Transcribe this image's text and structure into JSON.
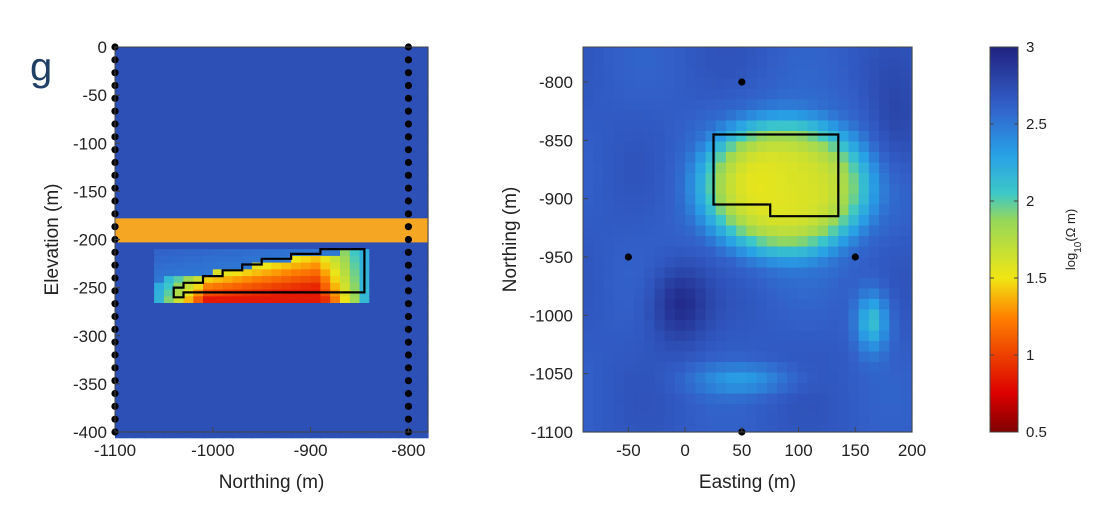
{
  "panel_label": "g",
  "chart_data": [
    {
      "type": "heatmap",
      "title": "",
      "xlabel": "Northing (m)",
      "ylabel": "Elevation (m)",
      "xlim": [
        -1100,
        -780
      ],
      "ylim": [
        -400,
        0
      ],
      "xticks": [
        -1100,
        -1000,
        -900,
        -800
      ],
      "xtick_labels": [
        "-1100",
        "-1000",
        "-900",
        "-800"
      ],
      "yticks": [
        0,
        -50,
        -100,
        -150,
        -200,
        -250,
        -300,
        -350,
        -400
      ],
      "ytick_labels": [
        "0",
        "-50",
        "-100",
        "-150",
        "-200",
        "-250",
        "-300",
        "-350",
        "-400"
      ],
      "background_value": 2.72,
      "orange_band": {
        "y_top": -178,
        "y_bottom": -203,
        "color": "#f5a623"
      },
      "anomaly": {
        "x_range": [
          -1060,
          -840
        ],
        "y_range": [
          -263,
          -208
        ],
        "min_value": 0.85,
        "min_at": [
          -860,
          -250
        ]
      },
      "outline": [
        [
          -1040,
          -260
        ],
        [
          -1040,
          -250
        ],
        [
          -1030,
          -250
        ],
        [
          -1030,
          -245
        ],
        [
          -1010,
          -245
        ],
        [
          -1010,
          -238
        ],
        [
          -990,
          -238
        ],
        [
          -990,
          -232
        ],
        [
          -970,
          -232
        ],
        [
          -970,
          -226
        ],
        [
          -950,
          -226
        ],
        [
          -950,
          -220
        ],
        [
          -920,
          -220
        ],
        [
          -920,
          -215
        ],
        [
          -890,
          -215
        ],
        [
          -890,
          -210
        ],
        [
          -845,
          -210
        ],
        [
          -845,
          -255
        ],
        [
          -1030,
          -255
        ],
        [
          -1030,
          -260
        ]
      ],
      "boreholes": [
        {
          "x": -1100,
          "y_from": 0,
          "y_to": -400,
          "count": 31
        },
        {
          "x": -800,
          "y_from": 0,
          "y_to": -400,
          "count": 31
        }
      ]
    },
    {
      "type": "heatmap",
      "title": "",
      "xlabel": "Easting (m)",
      "ylabel": "Northing (m)",
      "xlim": [
        -90,
        200
      ],
      "ylim": [
        -1100,
        -770
      ],
      "xticks": [
        -50,
        0,
        50,
        100,
        150,
        200
      ],
      "xtick_labels": [
        "-50",
        "0",
        "50",
        "100",
        "150",
        "200"
      ],
      "yticks": [
        -800,
        -850,
        -900,
        -950,
        -1000,
        -1050,
        -1100
      ],
      "ytick_labels": [
        "-800",
        "-850",
        "-900",
        "-950",
        "-1000",
        "-1050",
        "-1100"
      ],
      "background_value": 2.65,
      "features": [
        {
          "kind": "conductor",
          "center": [
            88,
            -890
          ],
          "radii": [
            78,
            62
          ],
          "min_value": 1.55
        },
        {
          "kind": "resistor",
          "center": [
            -5,
            -990
          ],
          "radii": [
            32,
            40
          ],
          "value": 2.95
        },
        {
          "kind": "conductor_weak",
          "center": [
            165,
            -1005
          ],
          "radii": [
            18,
            32
          ],
          "value": 2.1
        },
        {
          "kind": "conductor_weak",
          "center": [
            50,
            -1055
          ],
          "radii": [
            55,
            16
          ],
          "value": 2.35
        },
        {
          "kind": "resistor",
          "center": [
            185,
            -840
          ],
          "radii": [
            30,
            60
          ],
          "value": 2.8
        }
      ],
      "outline": [
        [
          25,
          -845
        ],
        [
          135,
          -845
        ],
        [
          135,
          -915
        ],
        [
          75,
          -915
        ],
        [
          75,
          -905
        ],
        [
          25,
          -905
        ],
        [
          25,
          -845
        ]
      ],
      "boreholes": [
        [
          50,
          -800
        ],
        [
          -50,
          -950
        ],
        [
          150,
          -950
        ],
        [
          50,
          -1100
        ]
      ]
    }
  ],
  "colorbar": {
    "label_base": "log",
    "label_sub": "10",
    "label_rest": "(Ω m)",
    "min": 0.5,
    "max": 3,
    "ticks": [
      3,
      2.5,
      2,
      1.5,
      1,
      0.5
    ],
    "tick_labels": [
      "3",
      "2.5",
      "2",
      "1.5",
      "1",
      "0.5"
    ],
    "colormap": "jet"
  }
}
